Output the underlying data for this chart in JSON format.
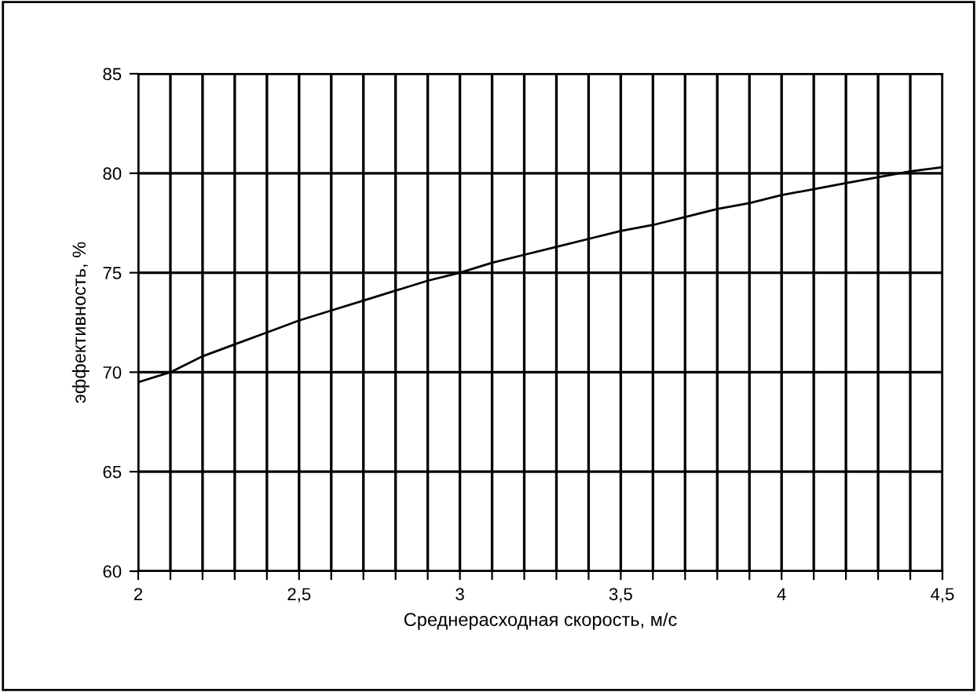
{
  "chart_data": {
    "type": "line",
    "xlabel": "Среднерасходная скорость, м/с",
    "ylabel": "эффективность, %",
    "x": [
      2,
      2.1,
      2.2,
      2.3,
      2.4,
      2.5,
      2.6,
      2.7,
      2.8,
      2.9,
      3,
      3.1,
      3.2,
      3.3,
      3.4,
      3.5,
      3.6,
      3.7,
      3.8,
      3.9,
      4,
      4.1,
      4.2,
      4.3,
      4.4,
      4.5
    ],
    "series": [
      {
        "color": "#000000",
        "values": [
          69.5,
          70.0,
          70.8,
          71.4,
          72.0,
          72.6,
          73.1,
          73.6,
          74.1,
          74.6,
          75.0,
          75.5,
          75.9,
          76.3,
          76.7,
          77.1,
          77.4,
          77.8,
          78.2,
          78.5,
          78.9,
          79.2,
          79.5,
          79.8,
          80.1,
          80.3
        ]
      }
    ],
    "xlim": [
      2,
      4.5
    ],
    "xticks": [
      {
        "value": 2,
        "label": "2"
      },
      {
        "value": 2.1,
        "label": null
      },
      {
        "value": 2.2,
        "label": null
      },
      {
        "value": 2.3,
        "label": null
      },
      {
        "value": 2.4,
        "label": null
      },
      {
        "value": 2.5,
        "label": "2,5"
      },
      {
        "value": 2.6,
        "label": null
      },
      {
        "value": 2.7,
        "label": null
      },
      {
        "value": 2.8,
        "label": null
      },
      {
        "value": 2.9,
        "label": null
      },
      {
        "value": 3,
        "label": "3"
      },
      {
        "value": 3.1,
        "label": null
      },
      {
        "value": 3.2,
        "label": null
      },
      {
        "value": 3.3,
        "label": null
      },
      {
        "value": 3.4,
        "label": null
      },
      {
        "value": 3.5,
        "label": "3,5"
      },
      {
        "value": 3.6,
        "label": null
      },
      {
        "value": 3.7,
        "label": null
      },
      {
        "value": 3.8,
        "label": null
      },
      {
        "value": 3.9,
        "label": null
      },
      {
        "value": 4,
        "label": "4"
      },
      {
        "value": 4.1,
        "label": null
      },
      {
        "value": 4.2,
        "label": null
      },
      {
        "value": 4.3,
        "label": null
      },
      {
        "value": 4.4,
        "label": null
      },
      {
        "value": 4.5,
        "label": "4,5"
      }
    ],
    "ylim": [
      60,
      85
    ],
    "yticks": [
      60,
      65,
      70,
      75,
      80,
      85
    ],
    "grid": true,
    "marker": "none",
    "line_style": "solid"
  }
}
